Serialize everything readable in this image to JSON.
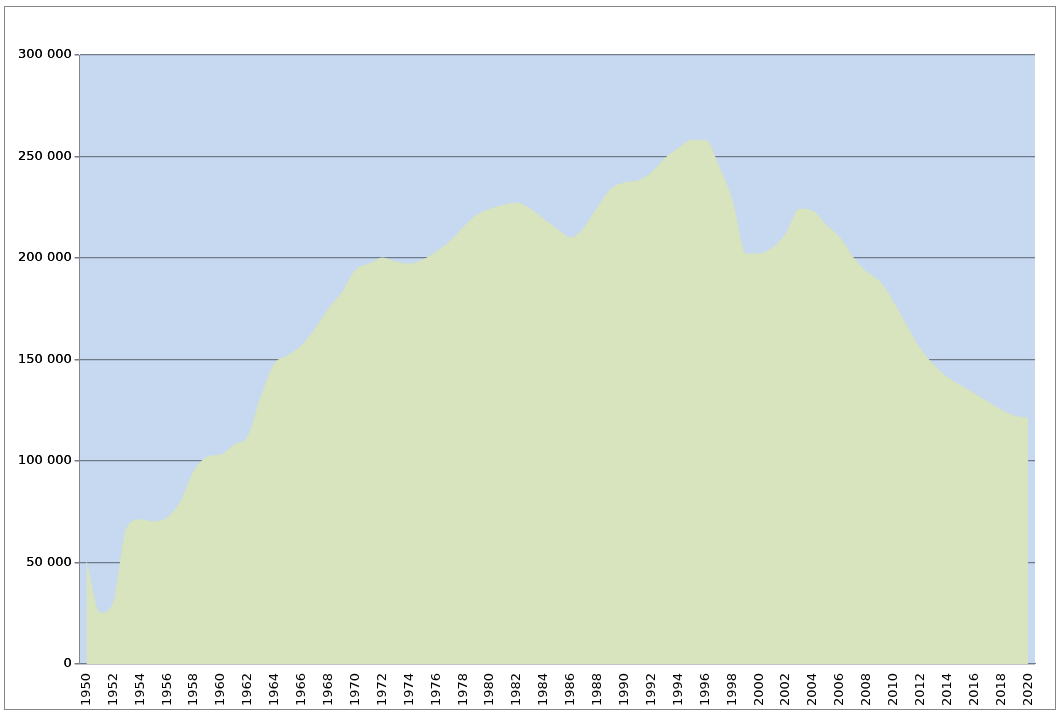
{
  "chart_data": {
    "type": "area",
    "categories": [
      "1950",
      null,
      "1952",
      null,
      "1954",
      null,
      "1956",
      null,
      "1958",
      null,
      "1960",
      null,
      "1962",
      null,
      "1964",
      null,
      "1966",
      null,
      "1968",
      null,
      "1970",
      null,
      "1972",
      null,
      "1974",
      null,
      "1976",
      null,
      "1978",
      null,
      "1980",
      null,
      "1982",
      null,
      "1984",
      null,
      "1986",
      null,
      "1988",
      null,
      "1990",
      null,
      "1992",
      null,
      "1994",
      null,
      "1996",
      null,
      "1998",
      null,
      "2000",
      null,
      "2002",
      null,
      "2004",
      null,
      "2006",
      null,
      "2008",
      null,
      "2010",
      null,
      "2012",
      null,
      "2014",
      null,
      "2016",
      null,
      "2018",
      null,
      "2020"
    ],
    "series": [
      {
        "color": "#d7e4bd",
        "values": [
          50000,
          25000,
          30000,
          67000,
          71000,
          70000,
          72000,
          80000,
          95000,
          102000,
          103000,
          108000,
          112000,
          132000,
          148000,
          152000,
          157000,
          165000,
          175000,
          183000,
          194000,
          197000,
          200000,
          198000,
          197000,
          199000,
          203000,
          208000,
          215000,
          221000,
          224000,
          226000,
          227000,
          224000,
          219000,
          214000,
          210000,
          215000,
          225000,
          234000,
          237000,
          238000,
          242000,
          249000,
          254000,
          258000,
          258000,
          245000,
          228000,
          202000,
          202000,
          205000,
          212000,
          224000,
          223000,
          216000,
          210000,
          200000,
          193000,
          188000,
          178000,
          166000,
          155000,
          147000,
          141000,
          137000,
          133000,
          129000,
          125000,
          122000,
          121000
        ]
      }
    ],
    "ylim": [
      0,
      300000
    ],
    "yticks": [
      0,
      {
        "value": 50000,
        "label": "50 000"
      },
      {
        "value": 100000,
        "label": "100 000"
      },
      {
        "value": 150000,
        "label": "150 000"
      },
      {
        "value": 200000,
        "label": "200 000"
      },
      {
        "value": 250000,
        "label": "250 000"
      },
      {
        "value": 300000,
        "label": "300 000"
      }
    ],
    "bands": [
      {
        "axis": "y",
        "from": 0,
        "to": 300000,
        "color": "#c6d9f0"
      }
    ],
    "grid": "y",
    "legend": false
  }
}
